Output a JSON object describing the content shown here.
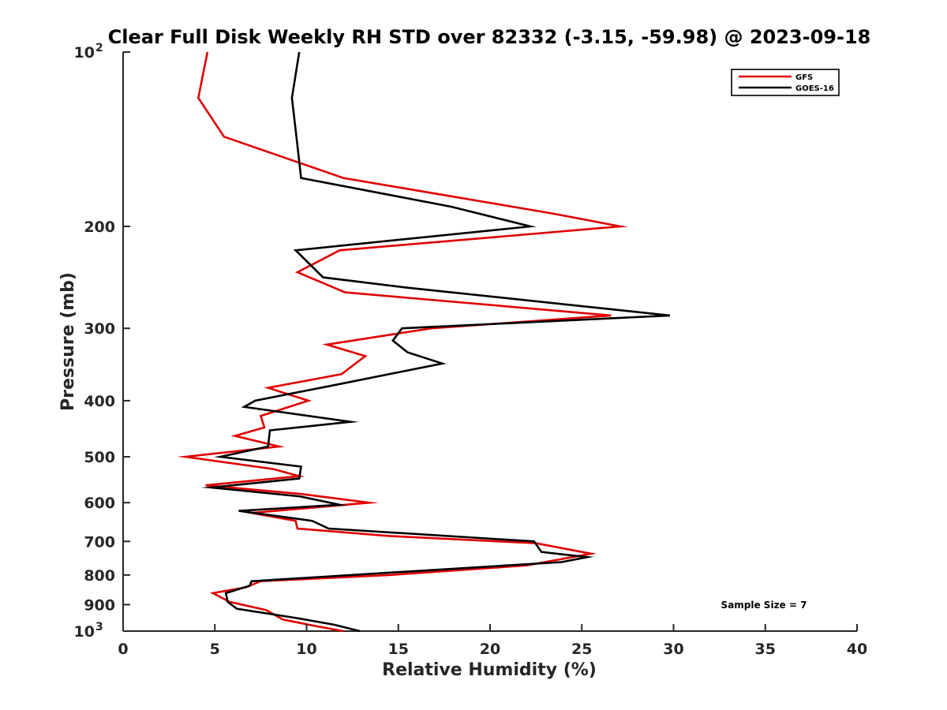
{
  "chart_data": {
    "type": "line",
    "title": "Clear Full Disk Weekly RH STD over 82332 (-3.15, -59.98) @ 2023-09-18",
    "xlabel": "Relative Humidity (%)",
    "ylabel": "Pressure (mb)",
    "xlim": [
      0,
      40
    ],
    "ylim": [
      100,
      1000
    ],
    "yscale": "log",
    "yreversed": true,
    "grid": false,
    "legend_position": "top-right",
    "x_ticks": [
      "0",
      "5",
      "10",
      "15",
      "20",
      "25",
      "30",
      "35",
      "40"
    ],
    "y_ticks": [
      {
        "value": 100,
        "base": "10",
        "exp": "2"
      },
      {
        "value": 200,
        "label": "200"
      },
      {
        "value": 300,
        "label": "300"
      },
      {
        "value": 400,
        "label": "400"
      },
      {
        "value": 500,
        "label": "500"
      },
      {
        "value": 600,
        "label": "600"
      },
      {
        "value": 700,
        "label": "700"
      },
      {
        "value": 800,
        "label": "800"
      },
      {
        "value": 900,
        "label": "900"
      },
      {
        "value": 1000,
        "base": "10",
        "exp": "3"
      }
    ],
    "annotation": "Sample Size = 7",
    "series": [
      {
        "name": "GFS",
        "color": "#e00000",
        "points": [
          [
            4.6,
            100
          ],
          [
            4.1,
            120
          ],
          [
            5.5,
            140
          ],
          [
            12.0,
            165
          ],
          [
            23.4,
            190
          ],
          [
            27.1,
            200
          ],
          [
            11.8,
            220
          ],
          [
            9.5,
            240
          ],
          [
            12.1,
            260
          ],
          [
            26.6,
            285
          ],
          [
            16.8,
            300
          ],
          [
            11.1,
            320
          ],
          [
            13.2,
            335
          ],
          [
            11.9,
            360
          ],
          [
            7.9,
            380
          ],
          [
            10.1,
            400
          ],
          [
            7.5,
            425
          ],
          [
            7.7,
            445
          ],
          [
            6.1,
            460
          ],
          [
            8.5,
            480
          ],
          [
            3.4,
            500
          ],
          [
            8.2,
            525
          ],
          [
            9.6,
            540
          ],
          [
            4.5,
            560
          ],
          [
            9.8,
            580
          ],
          [
            13.4,
            600
          ],
          [
            7.0,
            625
          ],
          [
            9.4,
            645
          ],
          [
            9.5,
            665
          ],
          [
            14.5,
            685
          ],
          [
            22.5,
            705
          ],
          [
            25.5,
            735
          ],
          [
            22.0,
            770
          ],
          [
            14.5,
            800
          ],
          [
            7.5,
            820
          ],
          [
            6.7,
            840
          ],
          [
            4.9,
            860
          ],
          [
            5.8,
            890
          ],
          [
            7.8,
            920
          ],
          [
            8.7,
            955
          ],
          [
            10.5,
            980
          ],
          [
            12.0,
            1000
          ]
        ]
      },
      {
        "name": "GOES-16",
        "color": "#000000",
        "points": [
          [
            9.6,
            100
          ],
          [
            9.2,
            120
          ],
          [
            9.5,
            145
          ],
          [
            9.7,
            165
          ],
          [
            17.9,
            185
          ],
          [
            22.2,
            200
          ],
          [
            9.4,
            220
          ],
          [
            10.9,
            245
          ],
          [
            15.4,
            255
          ],
          [
            29.8,
            285
          ],
          [
            15.2,
            300
          ],
          [
            14.7,
            315
          ],
          [
            15.5,
            330
          ],
          [
            17.4,
            345
          ],
          [
            11.7,
            375
          ],
          [
            7.2,
            400
          ],
          [
            6.6,
            410
          ],
          [
            12.4,
            435
          ],
          [
            8.0,
            450
          ],
          [
            7.9,
            480
          ],
          [
            5.3,
            500
          ],
          [
            9.7,
            520
          ],
          [
            9.6,
            545
          ],
          [
            4.8,
            565
          ],
          [
            9.6,
            585
          ],
          [
            11.8,
            605
          ],
          [
            6.3,
            620
          ],
          [
            10.3,
            645
          ],
          [
            11.2,
            665
          ],
          [
            22.4,
            700
          ],
          [
            22.8,
            730
          ],
          [
            25.3,
            745
          ],
          [
            23.9,
            760
          ],
          [
            7.0,
            820
          ],
          [
            6.9,
            835
          ],
          [
            5.6,
            860
          ],
          [
            5.7,
            890
          ],
          [
            6.2,
            915
          ],
          [
            9.5,
            950
          ],
          [
            11.5,
            975
          ],
          [
            12.9,
            1000
          ]
        ]
      }
    ]
  }
}
